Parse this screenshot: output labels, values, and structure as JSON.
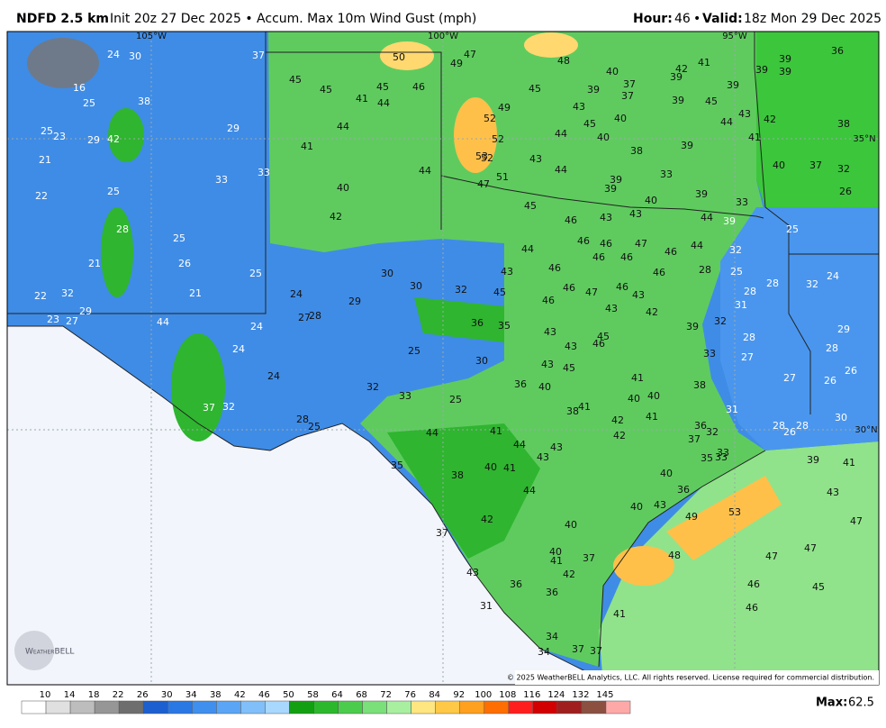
{
  "header": {
    "title": "NDFD 2.5 km",
    "subtitle": "Init 20z 27 Dec 2025 • Accum. Max 10m Wind Gust (mph)",
    "hour_label": "Hour:",
    "hour_value": 46,
    "separator": "•",
    "valid_label": "Valid:",
    "valid_value": "18z Mon 29 Dec 2025"
  },
  "map": {
    "grid_labels": [
      "105°W",
      "100°W",
      "95°W",
      "35°N",
      "30°N"
    ],
    "labels": [
      24,
      30,
      37,
      50,
      49,
      47,
      48,
      40,
      42,
      41,
      39,
      39,
      39,
      36,
      16,
      45,
      45,
      41,
      45,
      44,
      46,
      37,
      39,
      39,
      37,
      45,
      49,
      43,
      39,
      45,
      39,
      43,
      44,
      42,
      38,
      25,
      38,
      25,
      23,
      29,
      42,
      29,
      44,
      52,
      52,
      45,
      40,
      44,
      40,
      41,
      21,
      41,
      53,
      52,
      43,
      38,
      39,
      40,
      37,
      32,
      33,
      33,
      44,
      51,
      47,
      44,
      39,
      33,
      39,
      22,
      25,
      40,
      45,
      40,
      39,
      26,
      33,
      42,
      46,
      43,
      43,
      44,
      39,
      25,
      28,
      25,
      46,
      46,
      47,
      44,
      32,
      44,
      46,
      46,
      46,
      21,
      26,
      25,
      30,
      46,
      43,
      28,
      25,
      28,
      46,
      24,
      32,
      22,
      32,
      21,
      24,
      30,
      32,
      45,
      46,
      46,
      47,
      46,
      43,
      28,
      31,
      27,
      23,
      29,
      27,
      28,
      29,
      43,
      42,
      44,
      36,
      35,
      39,
      32,
      29,
      28,
      24,
      43,
      43,
      46,
      45,
      28,
      27,
      24,
      25,
      30,
      33,
      43,
      45,
      26,
      24,
      41,
      27,
      26,
      38,
      32,
      33,
      36,
      40,
      25,
      40,
      40,
      37,
      32,
      41,
      38,
      41,
      31,
      42,
      28,
      25,
      44,
      41,
      36,
      32,
      42,
      28,
      26,
      28,
      30,
      37,
      44,
      43,
      33,
      35,
      33,
      39,
      41,
      35,
      43,
      40,
      41,
      38,
      40,
      44,
      36,
      43,
      42,
      40,
      43,
      49,
      53,
      47,
      40,
      37,
      48,
      47,
      47,
      40,
      41,
      37,
      43,
      42,
      46,
      45,
      36,
      36,
      31,
      41,
      46,
      34,
      34,
      37,
      37
    ],
    "copyright": "© 2025 WeatherBELL Analytics, LLC. All rights reserved. License required for commercial distribution.",
    "logo": "WeatherBELL"
  },
  "colorbar": {
    "ticks": [
      10,
      14,
      18,
      22,
      26,
      30,
      34,
      38,
      42,
      46,
      50,
      58,
      64,
      68,
      72,
      76,
      84,
      92,
      100,
      108,
      116,
      124,
      132,
      145
    ],
    "colors": [
      "#ffffff",
      "#e0e0e0",
      "#bdbdbd",
      "#969696",
      "#6e6e6e",
      "#1c5fd0",
      "#2a78e4",
      "#3f8fee",
      "#5aa5f5",
      "#80bff9",
      "#a8d8fd",
      "#12a012",
      "#2cb82c",
      "#4ccc4c",
      "#7ae07a",
      "#a8f0a0",
      "#ffe680",
      "#ffc846",
      "#ffa01e",
      "#ff6e00",
      "#ff1e1e",
      "#d20000",
      "#a01e1e",
      "#8c5040",
      "#ffa8a8"
    ],
    "max_label": "Max:",
    "max_value": 62.5
  }
}
